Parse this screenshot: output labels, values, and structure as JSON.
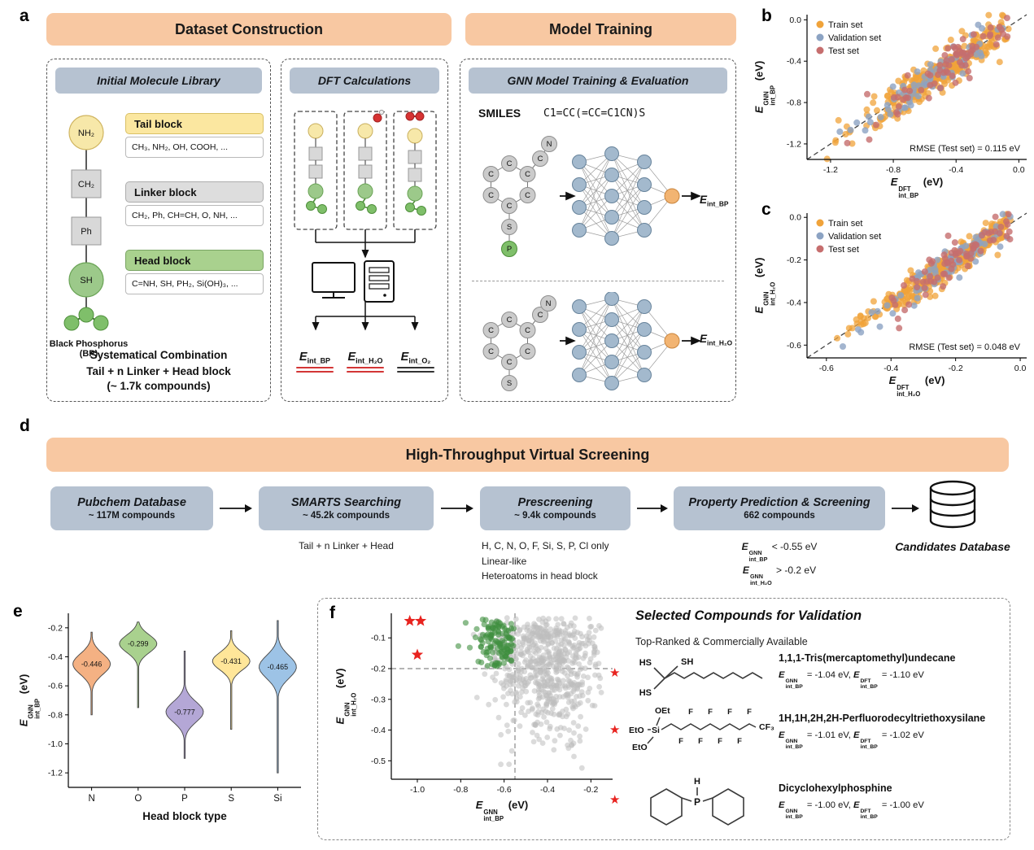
{
  "colors": {
    "header_orange": "#F8C8A2",
    "panel_blue": "#B6C2D1",
    "tail_yellow": "#FBE7A0",
    "linker_gray": "#DDDDDD",
    "head_green": "#A9D18E",
    "train": "#F0A33A",
    "validation": "#8CA3C3",
    "test": "#C66E6E",
    "selected_green": "#3F8F3F",
    "screened_gray": "#BDBDBD",
    "star_red": "#E8231F"
  },
  "panel_a": {
    "label": "a",
    "dataset_title": "Dataset Construction",
    "training_title": "Model Training",
    "library": {
      "title": "Initial Molecule Library",
      "chain": {
        "tail": "NH₂",
        "linker1": "CH₂",
        "linker2": "Ph",
        "head": "SH"
      },
      "bp_caption": "Black Phosphorus (BP)",
      "tail_block": {
        "title": "Tail block",
        "items": "CH₃, NH₂, OH, COOH, ..."
      },
      "linker_block": {
        "title": "Linker block",
        "items": "CH₂, Ph, CH=CH, O, NH, ..."
      },
      "head_block": {
        "title": "Head block",
        "items": "C=NH, SH, PH₂, Si(OH)₃, ..."
      },
      "combination": {
        "l1": "Systematical Combination",
        "l2": "Tail + n Linker + Head block",
        "l3": "(~ 1.7k compounds)"
      }
    },
    "dft": {
      "title": "DFT Calculations",
      "e_bp": {
        "sym": "E",
        "sub": "int_BP"
      },
      "e_h2o": {
        "sym": "E",
        "sub": "int_H₂O"
      },
      "e_o2": {
        "sym": "E",
        "sub": "int_O₂"
      }
    },
    "gnn": {
      "title": "GNN Model Training & Evaluation",
      "smiles_label": "SMILES",
      "smiles": "C1=CC(=CC=C1CN)S",
      "atoms": {
        "c": "C",
        "n": "N",
        "s": "S",
        "p": "P"
      },
      "out_bp": {
        "sym": "E",
        "sub": "int_BP"
      },
      "out_h2o": {
        "sym": "E",
        "sub": "int_H₂O"
      }
    }
  },
  "panel_b": {
    "label": "b",
    "ylabel": {
      "sym": "E",
      "sup": "GNN",
      "sub": "int_BP",
      "unit": " (eV)"
    },
    "xlabel": {
      "sym": "E",
      "sup": "DFT",
      "sub": "int_BP",
      "unit": " (eV)"
    }
  },
  "panel_c": {
    "label": "c",
    "ylabel": {
      "sym": "E",
      "sup": "GNN",
      "sub": "int_H₂O",
      "unit": " (eV)"
    },
    "xlabel": {
      "sym": "E",
      "sup": "DFT",
      "sub": "int_H₂O",
      "unit": " (eV)"
    }
  },
  "panel_d": {
    "label": "d",
    "title": "High-Throughput Virtual Screening",
    "steps": [
      {
        "title": "Pubchem Database",
        "count": "~ 117M compounds"
      },
      {
        "title": "SMARTS Searching",
        "count": "~ 45.2k compounds",
        "note": "Tail + n Linker + Head"
      },
      {
        "title": "Prescreening",
        "count": "~ 9.4k compounds",
        "notes": [
          "H, C, N, O, F, Si, S, P, Cl only",
          "Linear-like",
          "Heteroatoms in head block"
        ]
      },
      {
        "title": "Property Prediction & Screening",
        "count": "662 compounds",
        "criteria": [
          {
            "sym": "E",
            "sup": "GNN",
            "sub": "int_BP",
            "val": " < -0.55 eV"
          },
          {
            "sym": "E",
            "sup": "GNN",
            "sub": "int_H₂O",
            "val": " > -0.2 eV"
          }
        ]
      }
    ],
    "database_label": "Candidates Database"
  },
  "panel_e": {
    "label": "e",
    "ylabel": {
      "sym": "E",
      "sup": "GNN",
      "sub": "int_BP",
      "unit": " (eV)"
    }
  },
  "panel_f": {
    "label": "f",
    "xlabel": {
      "sym": "E",
      "sup": "GNN",
      "sub": "int_BP",
      "unit": " (eV)"
    },
    "ylabel": {
      "sym": "E",
      "sup": "GNN",
      "sub": "int_H₂O",
      "unit": " (eV)"
    },
    "right": {
      "title": "Selected Compounds for Validation",
      "subtitle": "Top-Ranked & Commercially Available",
      "compounds": [
        {
          "name": "1,1,1-Tris(mercaptomethyl)undecane",
          "e_gnn": {
            "sym": "E",
            "sup": "GNN",
            "sub": "int_BP",
            "val": " = -1.04 eV,"
          },
          "e_dft": {
            "sym": "E",
            "sup": "DFT",
            "sub": "int_BP",
            "val": " = -1.10 eV"
          },
          "atoms": [
            "HS",
            "SH",
            "HS"
          ]
        },
        {
          "name": "1H,1H,2H,2H-Perfluorodecyltriethoxysilane",
          "e_gnn": {
            "sym": "E",
            "sup": "GNN",
            "sub": "int_BP",
            "val": " = -1.01 eV,"
          },
          "e_dft": {
            "sym": "E",
            "sup": "DFT",
            "sub": "int_BP",
            "val": " = -1.02 eV"
          },
          "atoms": [
            "OEt",
            "EtO",
            "Si",
            "EtO",
            "F",
            "F",
            "F",
            "F",
            "F",
            "F",
            "F",
            "F",
            "CF₃"
          ]
        },
        {
          "name": "Dicyclohexylphosphine",
          "e_gnn": {
            "sym": "E",
            "sup": "GNN",
            "sub": "int_BP",
            "val": " = -1.00 eV,"
          },
          "e_dft": {
            "sym": "E",
            "sup": "DFT",
            "sub": "int_BP",
            "val": " = -1.00 eV"
          },
          "atoms": [
            "H",
            "P"
          ]
        }
      ]
    }
  },
  "chart_data": [
    {
      "id": "b",
      "type": "scatter",
      "xlabel": "E_int_BP^DFT (eV)",
      "ylabel": "E_int_BP^GNN (eV)",
      "xlim": [
        -1.35,
        0.05
      ],
      "ylim": [
        -1.35,
        0.05
      ],
      "xticks": [
        "-1.2",
        "-0.8",
        "-0.4",
        "0.0"
      ],
      "yticks": [
        "0.0",
        "-0.4",
        "-0.8",
        "-1.2"
      ],
      "identity_line": true,
      "annotation": "RMSE (Test set) = 0.115 eV",
      "legend": [
        {
          "label": "Train set",
          "color": "#F0A33A"
        },
        {
          "label": "Validation set",
          "color": "#8CA3C3"
        },
        {
          "label": "Test set",
          "color": "#C66E6E"
        }
      ],
      "series": [
        {
          "name": "Train set",
          "color": "#F0A33A",
          "opacity": 0.75,
          "r": 4,
          "n": 330,
          "seed": 5,
          "gen": "diag",
          "x_mean": -0.48,
          "x_sd": 0.26,
          "x_min": -1.3,
          "x_max": -0.05,
          "noise_sd": 0.085
        },
        {
          "name": "Validation set",
          "color": "#8CA3C3",
          "opacity": 0.8,
          "r": 4,
          "n": 72,
          "seed": 6,
          "gen": "diag",
          "x_mean": -0.5,
          "x_sd": 0.26,
          "x_min": -1.25,
          "x_max": -0.07,
          "noise_sd": 0.09
        },
        {
          "name": "Test set",
          "color": "#C66E6E",
          "opacity": 0.8,
          "r": 4,
          "n": 72,
          "seed": 7,
          "gen": "diag",
          "x_mean": -0.45,
          "x_sd": 0.24,
          "x_min": -1.2,
          "x_max": -0.07,
          "noise_sd": 0.1
        }
      ]
    },
    {
      "id": "c",
      "type": "scatter",
      "xlabel": "E_int_H2O^DFT (eV)",
      "ylabel": "E_int_H2O^GNN (eV)",
      "xlim": [
        -0.66,
        0.02
      ],
      "ylim": [
        -0.66,
        0.02
      ],
      "xticks": [
        "-0.6",
        "-0.4",
        "-0.2",
        "0.0"
      ],
      "yticks": [
        "0.0",
        "-0.2",
        "-0.4",
        "-0.6"
      ],
      "identity_line": true,
      "annotation": "RMSE (Test set) = 0.048 eV",
      "legend": [
        {
          "label": "Train set",
          "color": "#F0A33A"
        },
        {
          "label": "Validation set",
          "color": "#8CA3C3"
        },
        {
          "label": "Test set",
          "color": "#C66E6E"
        }
      ],
      "series": [
        {
          "name": "Train set",
          "color": "#F0A33A",
          "opacity": 0.75,
          "r": 4,
          "n": 330,
          "seed": 9,
          "gen": "diag",
          "x_mean": -0.22,
          "x_sd": 0.14,
          "x_min": -0.62,
          "x_max": -0.03,
          "noise_sd": 0.033
        },
        {
          "name": "Validation set",
          "color": "#8CA3C3",
          "opacity": 0.8,
          "r": 4,
          "n": 72,
          "seed": 10,
          "gen": "diag",
          "x_mean": -0.2,
          "x_sd": 0.13,
          "x_min": -0.6,
          "x_max": -0.03,
          "noise_sd": 0.036
        },
        {
          "name": "Test set",
          "color": "#C66E6E",
          "opacity": 0.8,
          "r": 4,
          "n": 72,
          "seed": 11,
          "gen": "diag",
          "x_mean": -0.18,
          "x_sd": 0.12,
          "x_min": -0.58,
          "x_max": -0.03,
          "noise_sd": 0.04
        }
      ]
    },
    {
      "id": "e",
      "type": "violin",
      "title": "",
      "xlabel": "Head block type",
      "ylabel": "E_int_BP^GNN (eV)",
      "ylim": [
        -1.3,
        -0.1
      ],
      "yticks": [
        "-0.2",
        "-0.4",
        "-0.6",
        "-0.8",
        "-1.0",
        "-1.2"
      ],
      "categories": [
        "N",
        "O",
        "P",
        "S",
        "Si"
      ],
      "violins": [
        {
          "category": "N",
          "median": -0.446,
          "label": "-0.446",
          "top": -0.23,
          "bottom": -0.8,
          "mu": -0.45,
          "sigma": 0.1,
          "color": "#F4B183"
        },
        {
          "category": "O",
          "median": -0.299,
          "label": "-0.299",
          "top": -0.16,
          "bottom": -0.75,
          "mu": -0.31,
          "sigma": 0.085,
          "color": "#A9D18E"
        },
        {
          "category": "P",
          "median": -0.777,
          "label": "-0.777",
          "top": -0.36,
          "bottom": -1.1,
          "mu": -0.78,
          "sigma": 0.1,
          "color": "#B4A7D6"
        },
        {
          "category": "S",
          "median": -0.431,
          "label": "-0.431",
          "top": -0.22,
          "bottom": -0.9,
          "mu": -0.43,
          "sigma": 0.085,
          "color": "#FFE699"
        },
        {
          "category": "Si",
          "median": -0.465,
          "label": "-0.465",
          "top": -0.15,
          "bottom": -1.2,
          "mu": -0.47,
          "sigma": 0.11,
          "color": "#9DC3E6"
        }
      ]
    },
    {
      "id": "f",
      "type": "scatter",
      "xlabel": "E_int_BP^GNN (eV)",
      "ylabel": "E_int_H2O^GNN (eV)",
      "xlim": [
        -1.12,
        -0.1
      ],
      "ylim": [
        -0.56,
        -0.02
      ],
      "xticks": [
        "-1.0",
        "-0.8",
        "-0.6",
        "-0.4",
        "-0.2"
      ],
      "yticks": [
        "-0.1",
        "-0.2",
        "-0.3",
        "-0.4",
        "-0.5"
      ],
      "thresholds": {
        "x": -0.55,
        "y": -0.2
      },
      "series": [
        {
          "name": "Screened compounds",
          "color": "#BDBDBD",
          "opacity": 0.55,
          "r": 3.4,
          "n": 650,
          "seed": 17,
          "gen": "cloud",
          "x_mean": -0.42,
          "x_sd": 0.13,
          "x_min": -0.8,
          "x_max": -0.14,
          "y_mean": -0.17,
          "y_sd": 0.12,
          "y_min": -0.53,
          "y_max": -0.035
        },
        {
          "name": "Selected candidates",
          "color": "#3F8F3F",
          "opacity": 0.6,
          "r": 3.6,
          "n": 120,
          "seed": 18,
          "gen": "cloud",
          "x_mean": -0.6,
          "x_sd": 0.07,
          "x_min": -0.9,
          "x_max": -0.555,
          "y_mean": -0.11,
          "y_sd": 0.05,
          "y_min": -0.195,
          "y_max": -0.04
        }
      ],
      "stars": {
        "color": "#E8231F",
        "points": [
          [
            -1.035,
            -0.045
          ],
          [
            -0.985,
            -0.045
          ],
          [
            -1.0,
            -0.155
          ]
        ]
      }
    }
  ]
}
